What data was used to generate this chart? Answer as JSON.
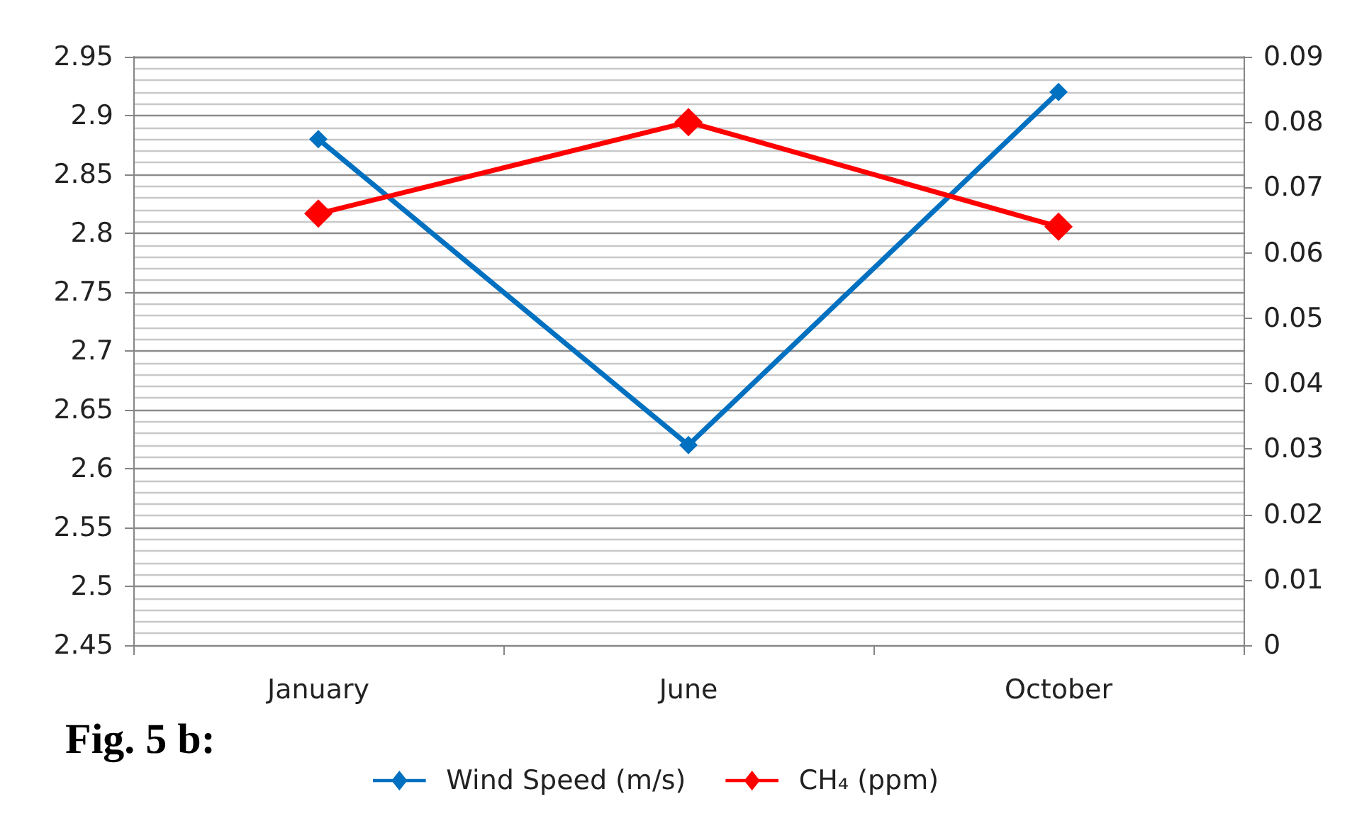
{
  "chart_data": {
    "type": "line",
    "categories": [
      "January",
      "June",
      "October"
    ],
    "series": [
      {
        "name": "Wind Speed (m/s)",
        "color": "#0070c0",
        "values": [
          2.88,
          2.62,
          2.92
        ]
      },
      {
        "name": "CH₄ (ppm)",
        "color": "#ff0000",
        "values": [
          0.066,
          0.08,
          0.064
        ],
        "axis": "y2"
      }
    ],
    "ylim": [
      2.45,
      2.95
    ],
    "yticks": [
      2.45,
      2.5,
      2.55,
      2.6,
      2.65,
      2.7,
      2.75,
      2.8,
      2.85,
      2.9,
      2.95
    ],
    "y2lim": [
      0,
      0.09
    ],
    "y2ticks": [
      0,
      0.01,
      0.02,
      0.03,
      0.04,
      0.05,
      0.06,
      0.07,
      0.08,
      0.09
    ],
    "grid": "y",
    "legend": "bottom",
    "marker": "diamond",
    "line_style": "solid",
    "annotations": [
      "Fig. 5 b:"
    ]
  }
}
